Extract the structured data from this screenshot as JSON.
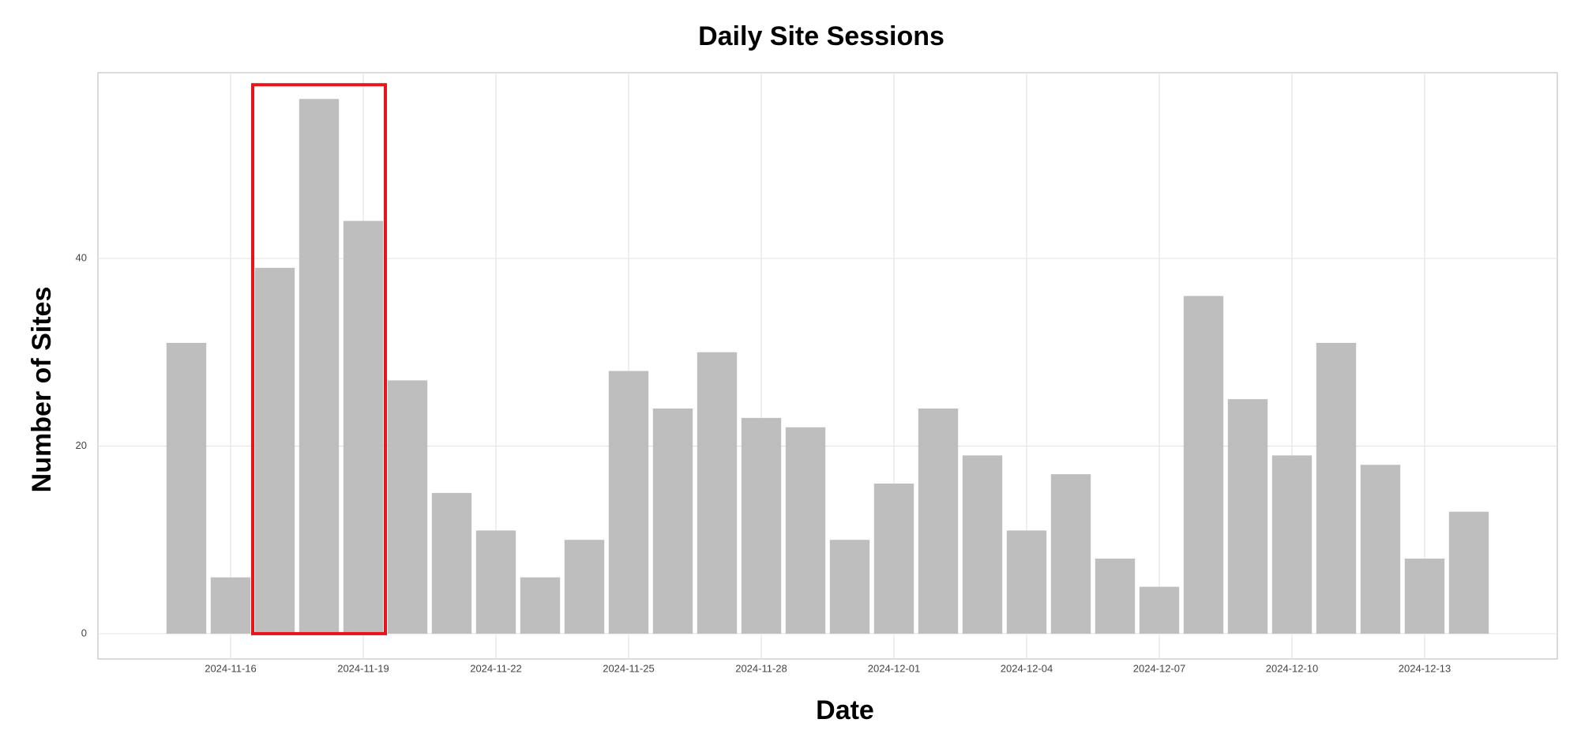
{
  "chart_data": {
    "type": "bar",
    "title": "Daily Site Sessions",
    "x_label": "Date",
    "y_label": "Number of Sites",
    "x": [
      "2024-11-15",
      "2024-11-16",
      "2024-11-17",
      "2024-11-18",
      "2024-11-19",
      "2024-11-20",
      "2024-11-21",
      "2024-11-22",
      "2024-11-23",
      "2024-11-24",
      "2024-11-25",
      "2024-11-26",
      "2024-11-27",
      "2024-11-28",
      "2024-11-29",
      "2024-11-30",
      "2024-12-01",
      "2024-12-02",
      "2024-12-03",
      "2024-12-04",
      "2024-12-05",
      "2024-12-06",
      "2024-12-07",
      "2024-12-08",
      "2024-12-09",
      "2024-12-10",
      "2024-12-11",
      "2024-12-12",
      "2024-12-13",
      "2024-12-14"
    ],
    "values": [
      31,
      6,
      39,
      57,
      44,
      27,
      15,
      11,
      6,
      10,
      28,
      24,
      30,
      23,
      22,
      10,
      16,
      24,
      19,
      11,
      17,
      8,
      5,
      36,
      25,
      19,
      31,
      18,
      8,
      13
    ],
    "color": "#bebebe",
    "xlim": [
      "2024-11-13",
      "2024-12-16"
    ],
    "xticks": [
      "2024-11-16",
      "2024-11-19",
      "2024-11-22",
      "2024-11-25",
      "2024-11-28",
      "2024-12-01",
      "2024-12-04",
      "2024-12-07",
      "2024-12-10",
      "2024-12-13"
    ],
    "ylim": [
      -2.7,
      59.8
    ],
    "yticks": [
      0,
      20,
      40
    ],
    "grid": true,
    "highlight_range": [
      "2024-11-17",
      "2024-11-19"
    ],
    "highlight_color": "#e8141b"
  }
}
